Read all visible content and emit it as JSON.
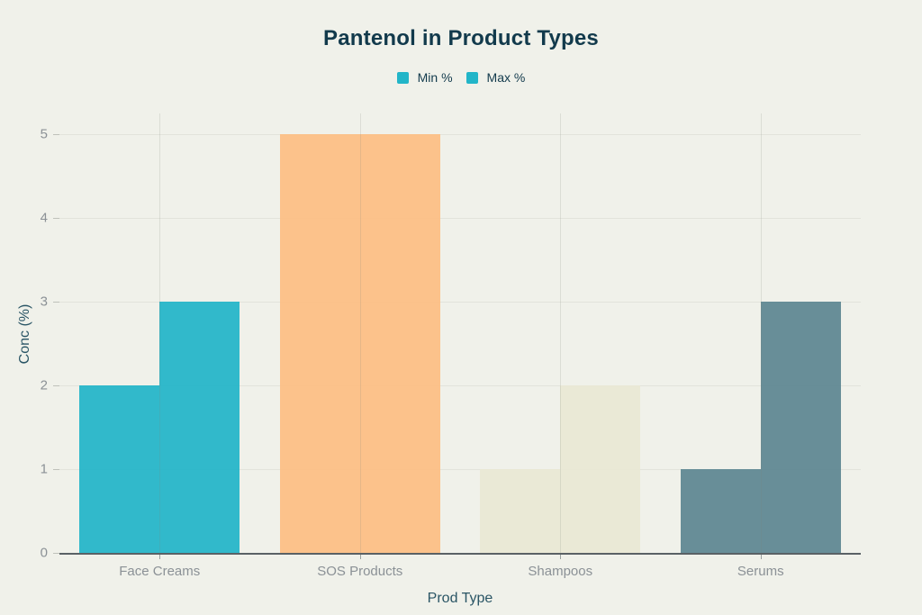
{
  "chart_data": {
    "type": "bar",
    "title": "Pantenol in Product Types",
    "xlabel": "Prod Type",
    "ylabel": "Conc (%)",
    "categories": [
      "Face Creams",
      "SOS Products",
      "Shampoos",
      "Serums"
    ],
    "series": [
      {
        "name": "Min %",
        "values": [
          2,
          5,
          1,
          1
        ]
      },
      {
        "name": "Max %",
        "values": [
          3,
          5,
          2,
          3
        ]
      }
    ],
    "yticks": [
      0,
      1,
      2,
      3,
      4,
      5
    ],
    "ylim": [
      0,
      5.25
    ],
    "grid": true,
    "legend_position": "top-center",
    "legend_swatch_color": "#22b5c8",
    "category_colors": [
      "#22b5c8",
      "#fdbe83",
      "#e9e8d4",
      "#5e8791"
    ],
    "colors": {
      "background": "#f0f1ea",
      "title_text": "#123a4c",
      "axis_title_text": "#2a5565",
      "tick_label_text": "#8b9196",
      "gridline": "#e2e3db",
      "axis_line": "#5a6165"
    }
  }
}
